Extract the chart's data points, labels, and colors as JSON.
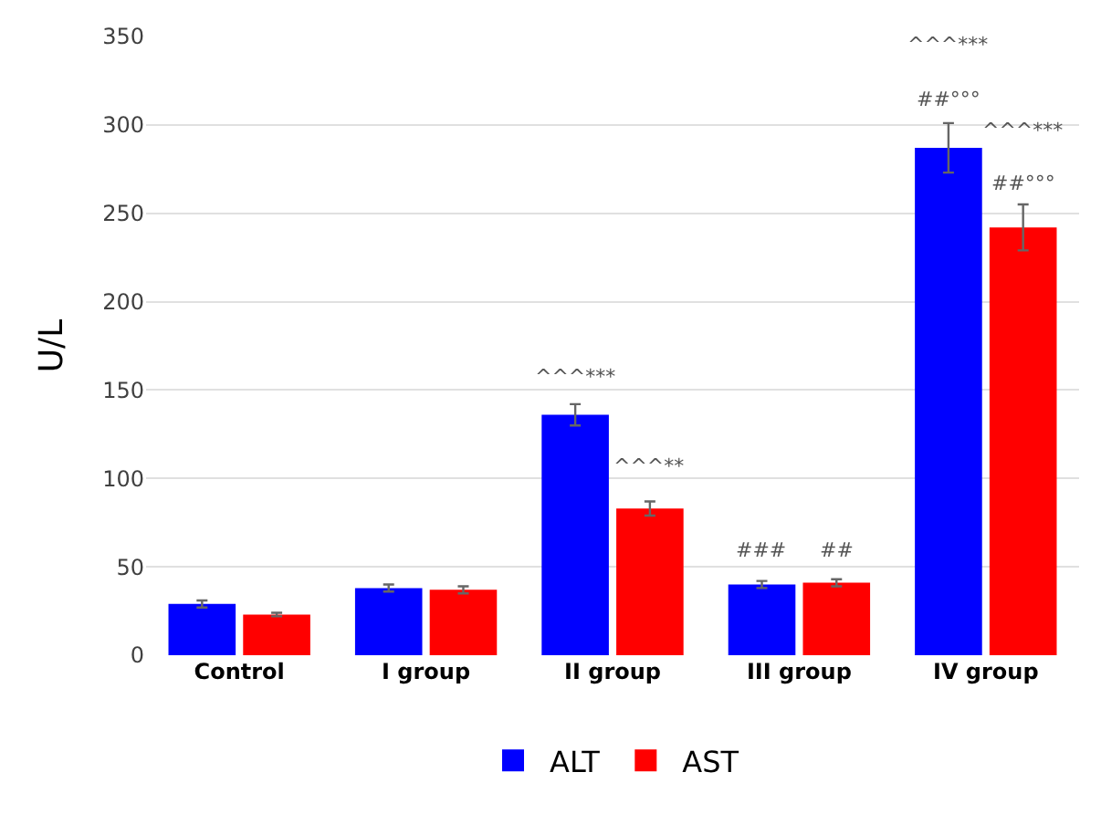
{
  "chart_data": {
    "type": "bar",
    "ylabel": "U/L",
    "categories": [
      "Control",
      "I group",
      "II group",
      "III group",
      "IV group"
    ],
    "series": [
      {
        "name": "ALT",
        "color": "#0000ff",
        "values": [
          29,
          38,
          136,
          40,
          287
        ],
        "errors": [
          2,
          2,
          6,
          2,
          14
        ]
      },
      {
        "name": "AST",
        "color": "#ff0000",
        "values": [
          23,
          37,
          83,
          41,
          242
        ],
        "errors": [
          1,
          2,
          4,
          2,
          13
        ]
      }
    ],
    "ylim": [
      0,
      350
    ],
    "yticks": [
      0,
      50,
      100,
      150,
      200,
      250,
      300,
      350
    ],
    "grid": "y",
    "legend": "bottom",
    "annotations": [
      "^^^***",
      "^^^**",
      "###",
      "##",
      "^^^***",
      "##°°°",
      "^^^***",
      "##°°°"
    ]
  }
}
